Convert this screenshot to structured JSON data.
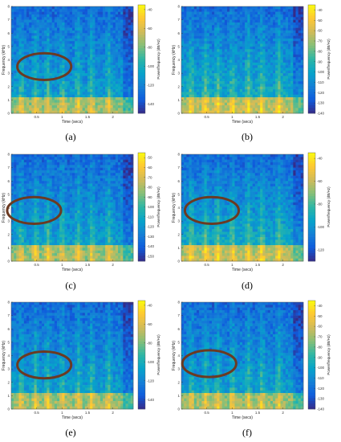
{
  "panels": [
    {
      "label": "(a)",
      "chart_data": {
        "type": "heatmap",
        "title": "",
        "xlabel": "Time (secs)",
        "ylabel": "Frequency (kHz)",
        "xlim": [
          0,
          2.4
        ],
        "ylim": [
          0,
          8
        ],
        "x_ticks": [
          0.5,
          1,
          1.5,
          2
        ],
        "y_ticks": [
          0,
          1,
          2,
          3,
          4,
          5,
          6,
          7,
          8
        ],
        "colorbar_label": "Power/frequency (dB/Hz)",
        "colorbar_ticks": [
          -40,
          -60,
          -80,
          -100,
          -120,
          -140
        ],
        "clim": [
          -150,
          -35
        ],
        "annotation": {
          "shape": "ellipse",
          "color": "#6b3a22",
          "center_time": 0.65,
          "center_freq": 3.5,
          "half_width_time": 0.53,
          "half_height_freq": 1.0
        }
      }
    },
    {
      "label": "(b)",
      "chart_data": {
        "type": "heatmap",
        "title": "",
        "xlabel": "Time (secs)",
        "ylabel": "Frequency (kHz)",
        "xlim": [
          0,
          2.4
        ],
        "ylim": [
          0,
          8
        ],
        "x_ticks": [
          0.5,
          1,
          1.5,
          2
        ],
        "y_ticks": [
          0,
          1,
          2,
          3,
          4,
          5,
          6,
          7,
          8
        ],
        "colorbar_label": "Power/frequency (dB/Hz)",
        "colorbar_ticks": [
          -40,
          -50,
          -60,
          -70,
          -80,
          -90,
          -100,
          -110,
          -120,
          -130,
          -140
        ],
        "clim": [
          -140,
          -35
        ]
      }
    },
    {
      "label": "(c)",
      "chart_data": {
        "type": "heatmap",
        "title": "",
        "xlabel": "Time (secs)",
        "ylabel": "Frequency (kHz)",
        "xlim": [
          0,
          2.4
        ],
        "ylim": [
          0,
          8
        ],
        "x_ticks": [
          0.5,
          1,
          1.5,
          2
        ],
        "y_ticks": [
          0,
          1,
          2,
          3,
          4,
          5,
          6,
          7,
          8
        ],
        "colorbar_label": "Power/frequency (dB/Hz)",
        "colorbar_ticks": [
          -50,
          -60,
          -70,
          -80,
          -90,
          -100,
          -110,
          -120,
          -130,
          -140,
          -150
        ],
        "clim": [
          -155,
          -45
        ],
        "annotation": {
          "shape": "ellipse",
          "color": "#6b3a22",
          "center_time": 0.45,
          "center_freq": 3.8,
          "half_width_time": 0.53,
          "half_height_freq": 1.0
        }
      }
    },
    {
      "label": "(d)",
      "chart_data": {
        "type": "heatmap",
        "title": "",
        "xlabel": "Time (secs)",
        "ylabel": "Frequency (kHz)",
        "xlim": [
          0,
          2.4
        ],
        "ylim": [
          0,
          8
        ],
        "x_ticks": [
          0.5,
          1,
          1.5,
          2
        ],
        "y_ticks": [
          0,
          1,
          2,
          3,
          4,
          5,
          6,
          7,
          8
        ],
        "colorbar_label": "Power/frequency (dB/Hz)",
        "colorbar_ticks": [
          -40,
          -60,
          -80,
          -100,
          -120
        ],
        "clim": [
          -130,
          -35
        ],
        "annotation": {
          "shape": "ellipse",
          "color": "#6b3a22",
          "center_time": 0.6,
          "center_freq": 3.8,
          "half_width_time": 0.53,
          "half_height_freq": 1.0
        }
      }
    },
    {
      "label": "(e)",
      "chart_data": {
        "type": "heatmap",
        "title": "",
        "xlabel": "Time (secs)",
        "ylabel": "Frequency (kHz)",
        "xlim": [
          0,
          2.4
        ],
        "ylim": [
          0,
          8
        ],
        "x_ticks": [
          0.5,
          1,
          1.5,
          2
        ],
        "y_ticks": [
          0,
          1,
          2,
          3,
          4,
          5,
          6,
          7,
          8
        ],
        "colorbar_label": "Power/frequency (dB/Hz)",
        "colorbar_ticks": [
          -40,
          -60,
          -80,
          -100,
          -120,
          -140
        ],
        "clim": [
          -150,
          -35
        ],
        "annotation": {
          "shape": "ellipse",
          "color": "#6b3a22",
          "center_time": 0.65,
          "center_freq": 3.3,
          "half_width_time": 0.53,
          "half_height_freq": 1.0
        }
      }
    },
    {
      "label": "(f)",
      "chart_data": {
        "type": "heatmap",
        "title": "",
        "xlabel": "Time (secs)",
        "ylabel": "Frequency (kHz)",
        "xlim": [
          0,
          2.4
        ],
        "ylim": [
          0,
          8
        ],
        "x_ticks": [
          0.5,
          1,
          1.5,
          2
        ],
        "y_ticks": [
          0,
          1,
          2,
          3,
          4,
          5,
          6,
          7,
          8
        ],
        "colorbar_label": "Power/frequency (dB/Hz)",
        "colorbar_ticks": [
          -40,
          -50,
          -60,
          -70,
          -80,
          -90,
          -100,
          -110,
          -120,
          -130,
          -140
        ],
        "clim": [
          -140,
          -35
        ],
        "annotation": {
          "shape": "ellipse",
          "color": "#6b3a22",
          "center_time": 0.55,
          "center_freq": 3.4,
          "half_width_time": 0.53,
          "half_height_freq": 1.0
        }
      }
    }
  ],
  "colors": {
    "colormap": [
      "#352a87",
      "#0f5cdd",
      "#1481d6",
      "#06a4ca",
      "#2eb7a4",
      "#87bf77",
      "#d1bb59",
      "#fec832",
      "#f9fb0e"
    ],
    "ellipse": "#6b3a22"
  }
}
